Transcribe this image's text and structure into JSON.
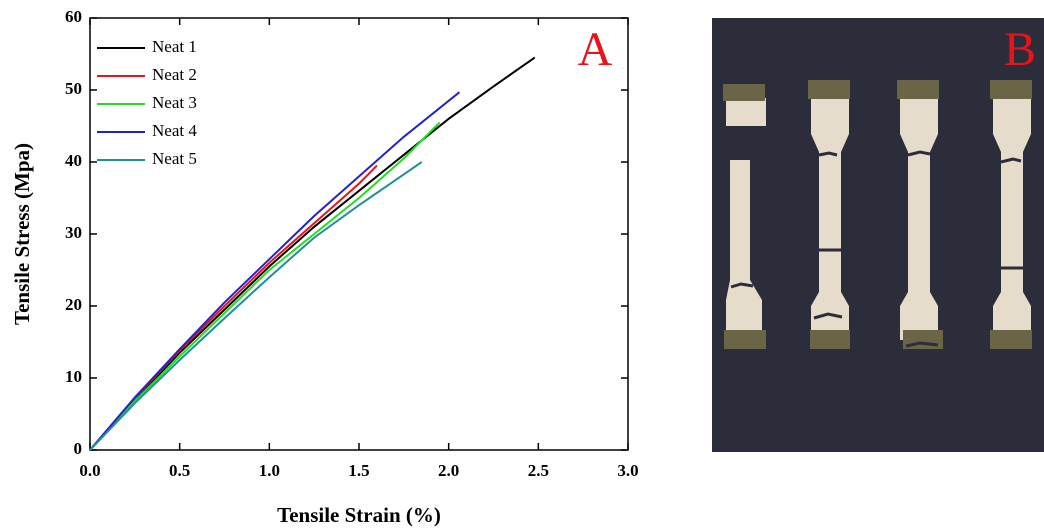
{
  "chart_data": {
    "type": "line",
    "xlabel": "Tensile Strain (%)",
    "ylabel": "Tensile Stress (Mpa)",
    "xlim": [
      0,
      3
    ],
    "ylim": [
      0,
      60
    ],
    "xticks": [
      {
        "value": 0,
        "label": "0.0"
      },
      0.5,
      {
        "value": 1,
        "label": "1.0"
      },
      1.5,
      {
        "value": 2,
        "label": "2.0"
      },
      2.5,
      {
        "value": 3,
        "label": "3.0"
      }
    ],
    "yticks": [
      0,
      10,
      20,
      30,
      40,
      50,
      60
    ],
    "legend": "upper left",
    "panel_labels": [
      "A",
      "B"
    ],
    "series": [
      {
        "name": "Neat 1",
        "color": "#000000",
        "x": [
          0,
          0.25,
          0.5,
          0.75,
          1.0,
          1.25,
          1.5,
          1.75,
          2.0,
          2.25,
          2.48
        ],
        "values": [
          0,
          7,
          13.5,
          19.5,
          25.5,
          31,
          36,
          41,
          46,
          50.5,
          54.5
        ]
      },
      {
        "name": "Neat 2",
        "color": "#e8141c",
        "x": [
          0,
          0.25,
          0.5,
          0.75,
          1.0,
          1.25,
          1.5,
          1.6
        ],
        "values": [
          0,
          7.2,
          13.8,
          20,
          26,
          31.5,
          37,
          39.5
        ]
      },
      {
        "name": "Neat 3",
        "color": "#22dd22",
        "x": [
          0,
          0.25,
          0.5,
          0.75,
          1.0,
          1.25,
          1.5,
          1.75,
          1.95
        ],
        "values": [
          0,
          6.8,
          13,
          19,
          25,
          30,
          35,
          40.5,
          45.5
        ]
      },
      {
        "name": "Neat 4",
        "color": "#2222cc",
        "x": [
          0,
          0.25,
          0.5,
          0.75,
          1.0,
          1.25,
          1.5,
          1.75,
          2.06
        ],
        "values": [
          0,
          7.3,
          14,
          20.5,
          26.5,
          32.5,
          38,
          43.5,
          49.7
        ]
      },
      {
        "name": "Neat 5",
        "color": "#1f8f99",
        "x": [
          0,
          0.25,
          0.5,
          0.75,
          1.0,
          1.25,
          1.5,
          1.85
        ],
        "values": [
          0,
          6.5,
          12.5,
          18.3,
          24,
          29.5,
          34,
          40
        ]
      }
    ]
  }
}
